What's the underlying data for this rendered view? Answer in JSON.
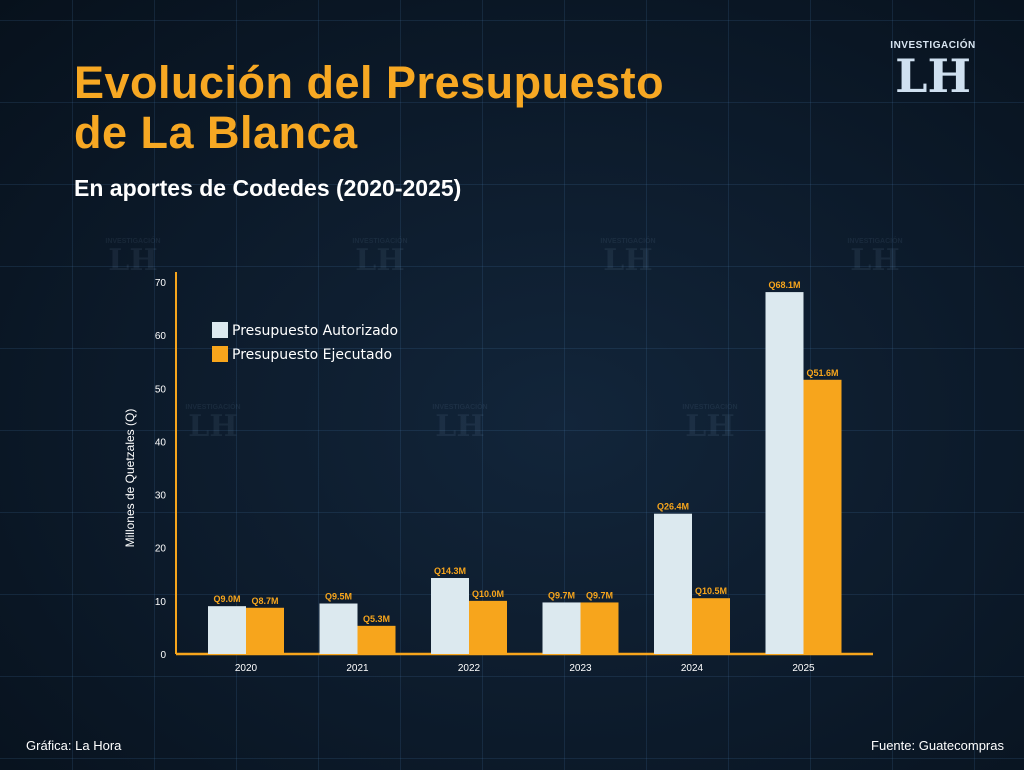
{
  "header": {
    "title_line1": "Evolución del Presupuesto",
    "title_line2": "de La Blanca",
    "subtitle": "En aportes de Codedes (2020-2025)"
  },
  "logo": {
    "top": "INVESTIGACIÓN",
    "mark": "LH"
  },
  "footer": {
    "left": "Gráfica: La Hora",
    "right": "Fuente: Guatecompras"
  },
  "colors": {
    "authorized": "#dce9ef",
    "executed": "#f7a51c",
    "axis": "#f7a51c",
    "title": "#f7a823"
  },
  "chart_data": {
    "type": "bar",
    "title": "Evolución del Presupuesto de La Blanca",
    "subtitle": "En aportes de Codedes (2020-2025)",
    "xlabel": "",
    "ylabel": "Millones de Quetzales (Q)",
    "ylim": [
      0,
      70
    ],
    "yticks": [
      0,
      10,
      20,
      30,
      40,
      50,
      60,
      70
    ],
    "categories": [
      "2020",
      "2021",
      "2022",
      "2023",
      "2024",
      "2025"
    ],
    "legend_position": "top-left",
    "grid": false,
    "series": [
      {
        "name": "Presupuesto Autorizado",
        "values": [
          9.0,
          9.5,
          14.3,
          9.7,
          26.4,
          68.1
        ],
        "labels": [
          "Q9.0M",
          "Q9.5M",
          "Q14.3M",
          "Q9.7M",
          "Q26.4M",
          "Q68.1M"
        ]
      },
      {
        "name": "Presupuesto Ejecutado",
        "values": [
          8.7,
          5.3,
          10.0,
          9.7,
          10.5,
          51.6
        ],
        "labels": [
          "Q8.7M",
          "Q5.3M",
          "Q10.0M",
          "Q9.7M",
          "Q10.5M",
          "Q51.6M"
        ]
      }
    ]
  }
}
